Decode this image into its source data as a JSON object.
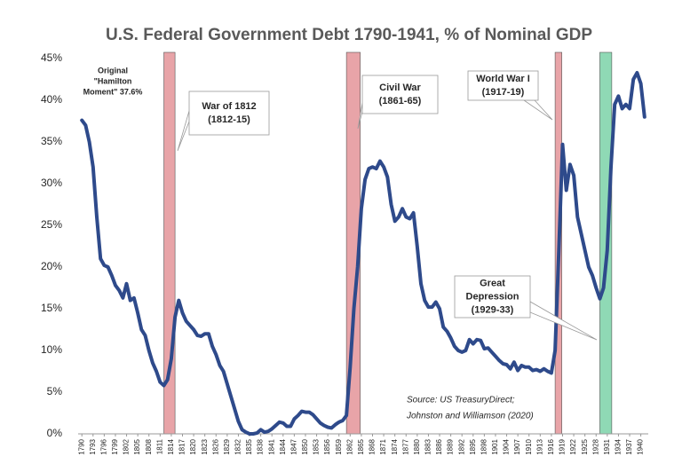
{
  "chart_data": {
    "type": "line",
    "title": "U.S. Federal Government Debt 1790-1941, % of Nominal GDP",
    "color": "#2e4a8b",
    "x": [
      1790,
      1791,
      1792,
      1793,
      1794,
      1795,
      1796,
      1797,
      1798,
      1799,
      1800,
      1801,
      1802,
      1803,
      1804,
      1805,
      1806,
      1807,
      1808,
      1809,
      1810,
      1811,
      1812,
      1813,
      1814,
      1815,
      1816,
      1817,
      1818,
      1819,
      1820,
      1821,
      1822,
      1823,
      1824,
      1825,
      1826,
      1827,
      1828,
      1829,
      1830,
      1831,
      1832,
      1833,
      1834,
      1835,
      1836,
      1837,
      1838,
      1839,
      1840,
      1841,
      1842,
      1843,
      1844,
      1845,
      1846,
      1847,
      1848,
      1849,
      1850,
      1851,
      1852,
      1853,
      1854,
      1855,
      1856,
      1857,
      1858,
      1859,
      1860,
      1861,
      1862,
      1863,
      1864,
      1865,
      1866,
      1867,
      1868,
      1869,
      1870,
      1871,
      1872,
      1873,
      1874,
      1875,
      1876,
      1877,
      1878,
      1879,
      1880,
      1881,
      1882,
      1883,
      1884,
      1885,
      1886,
      1887,
      1888,
      1889,
      1890,
      1891,
      1892,
      1893,
      1894,
      1895,
      1896,
      1897,
      1898,
      1899,
      1900,
      1901,
      1902,
      1903,
      1904,
      1905,
      1906,
      1907,
      1908,
      1909,
      1910,
      1911,
      1912,
      1913,
      1914,
      1915,
      1916,
      1917,
      1918,
      1919,
      1920,
      1921,
      1922,
      1923,
      1924,
      1925,
      1926,
      1927,
      1928,
      1929,
      1930,
      1931,
      1932,
      1933,
      1934,
      1935,
      1936,
      1937,
      1938,
      1939,
      1940,
      1941
    ],
    "values": [
      37.6,
      37,
      35,
      32,
      26,
      21,
      20.2,
      20,
      19,
      17.8,
      17.2,
      16.3,
      18,
      16,
      16.3,
      14.5,
      12.5,
      11.8,
      10,
      8.5,
      7.5,
      6.2,
      5.8,
      6.5,
      9,
      14,
      16,
      14.5,
      13.5,
      13,
      12.5,
      11.8,
      11.7,
      12,
      12,
      10.5,
      9.5,
      8.2,
      7.5,
      6,
      4.5,
      3,
      1.5,
      0.5,
      0.2,
      0,
      0,
      0.1,
      0.5,
      0.2,
      0.3,
      0.6,
      1,
      1.4,
      1.3,
      0.9,
      0.9,
      1.8,
      2.2,
      2.7,
      2.6,
      2.6,
      2.3,
      1.8,
      1.3,
      1,
      0.8,
      0.7,
      1.1,
      1.4,
      1.6,
      2.2,
      8,
      15,
      20,
      27,
      30.5,
      31.8,
      32,
      31.8,
      32.7,
      32,
      30.8,
      27.5,
      25.5,
      26,
      27,
      26,
      25.8,
      26.5,
      22.5,
      18,
      16,
      15.2,
      15.2,
      15.8,
      15,
      12.8,
      12.3,
      11.5,
      10.5,
      10,
      9.8,
      10,
      11.3,
      10.8,
      11.3,
      11.2,
      10.2,
      10.3,
      9.8,
      9.3,
      8.8,
      8.4,
      8.3,
      7.8,
      8.6,
      7.6,
      8.2,
      8,
      8,
      7.6,
      7.7,
      7.5,
      7.8,
      7.5,
      7.3,
      10,
      22,
      34.7,
      29.2,
      32.3,
      31,
      26,
      24,
      22,
      20,
      19,
      17.5,
      16.2,
      17.5,
      22,
      32,
      39.5,
      40.5,
      39,
      39.5,
      39,
      42.5,
      43.3,
      42,
      38
    ],
    "xlim": [
      1789,
      1942
    ],
    "xticks": [
      1790,
      1793,
      1796,
      1799,
      1802,
      1805,
      1808,
      1811,
      1814,
      1817,
      1820,
      1823,
      1826,
      1829,
      1832,
      1835,
      1838,
      1841,
      1844,
      1847,
      1850,
      1853,
      1856,
      1859,
      1862,
      1865,
      1868,
      1871,
      1874,
      1877,
      1880,
      1883,
      1886,
      1889,
      1892,
      1895,
      1898,
      1901,
      1904,
      1907,
      1910,
      1913,
      1916,
      1919,
      1922,
      1925,
      1928,
      1931,
      1934,
      1937,
      1940
    ],
    "ylim": [
      0,
      45
    ],
    "yticks": [
      {
        "value": 0,
        "label": "0%"
      },
      {
        "value": 5,
        "label": "5%"
      },
      {
        "value": 10,
        "label": "10%"
      },
      {
        "value": 15,
        "label": "15%"
      },
      {
        "value": 20,
        "label": "20%"
      },
      {
        "value": 25,
        "label": "25%"
      },
      {
        "value": 30,
        "label": "30%"
      },
      {
        "value": 35,
        "label": "35%"
      },
      {
        "value": 40,
        "label": "40%"
      },
      {
        "value": 45,
        "label": "45%"
      }
    ],
    "bands": [
      {
        "start": 1812,
        "end": 1815,
        "color": "#e8a4a8",
        "label": [
          "War of 1812",
          "(1812-15)"
        ]
      },
      {
        "start": 1861,
        "end": 1864.7,
        "color": "#e8a4a8",
        "label": [
          "Civil War",
          "(1861-65)"
        ]
      },
      {
        "start": 1917,
        "end": 1918.8,
        "color": "#e8a4a8",
        "label": [
          "World War I",
          "(1917-19)"
        ]
      },
      {
        "start": 1929,
        "end": 1932.2,
        "color": "#8fd9b5",
        "label": [
          "Great",
          "Depression",
          "(1929-33)"
        ]
      }
    ],
    "annotation": [
      "Original",
      "\"Hamilton",
      "Moment\" 37.6%"
    ],
    "source": [
      "Source: US TreasuryDirect;",
      "Johnston and Williamson (2020)"
    ]
  }
}
